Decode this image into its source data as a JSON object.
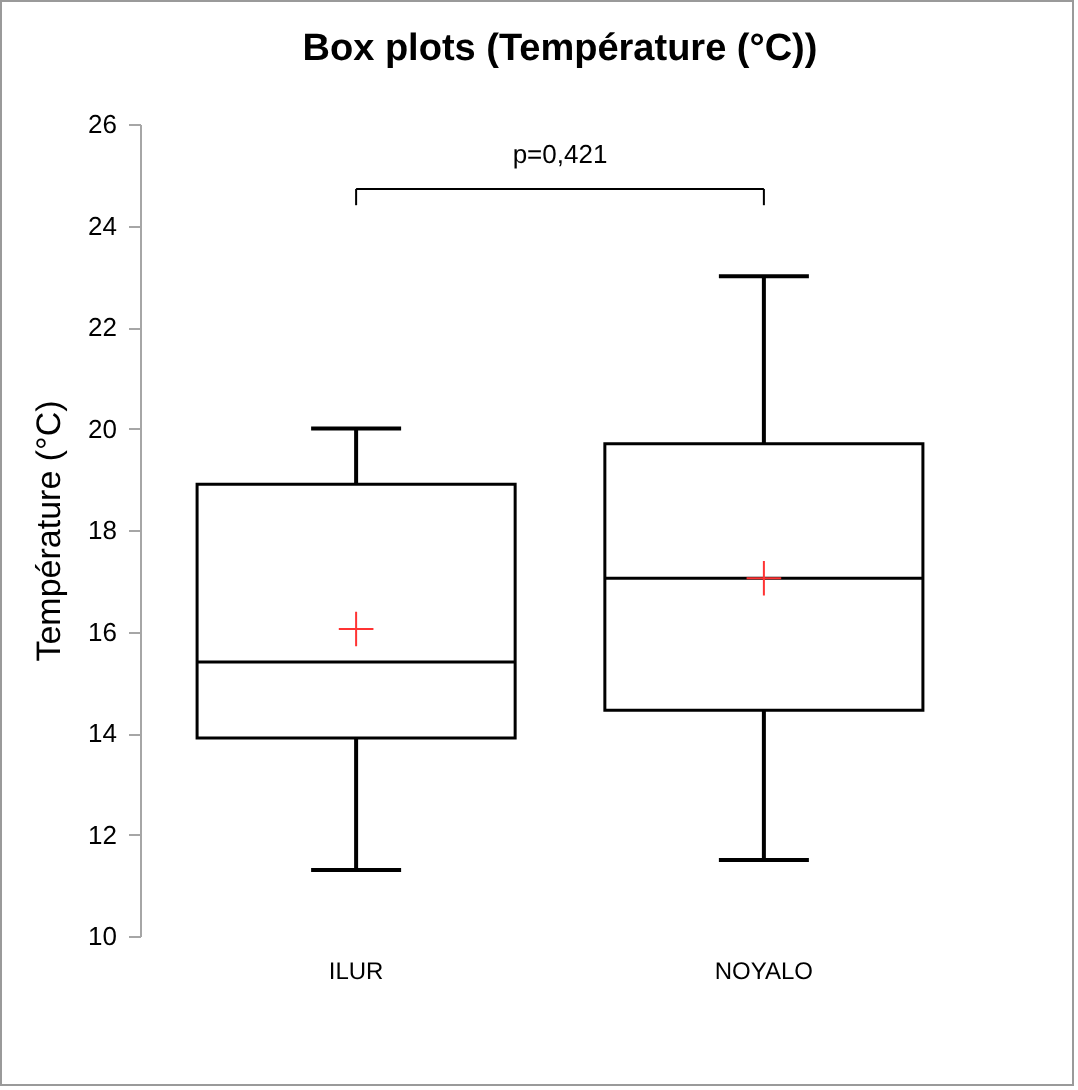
{
  "chart_data": {
    "type": "box",
    "title": "Box plots (Température (°C))",
    "ylabel": "Température (°C)",
    "categories": [
      "ILUR",
      "NOYALO"
    ],
    "boxes": [
      {
        "low": 11.3,
        "q1": 13.9,
        "median": 15.4,
        "q3": 18.9,
        "high": 20,
        "mean": 16.05
      },
      {
        "low": 11.5,
        "q1": 14.45,
        "median": 17.05,
        "q3": 19.7,
        "high": 23,
        "mean": 17.05
      }
    ],
    "ylim": [
      10,
      26
    ],
    "yticks": [
      10,
      12,
      14,
      16,
      18,
      20,
      22,
      24,
      26
    ],
    "annotations": [
      "p=0,421"
    ]
  }
}
